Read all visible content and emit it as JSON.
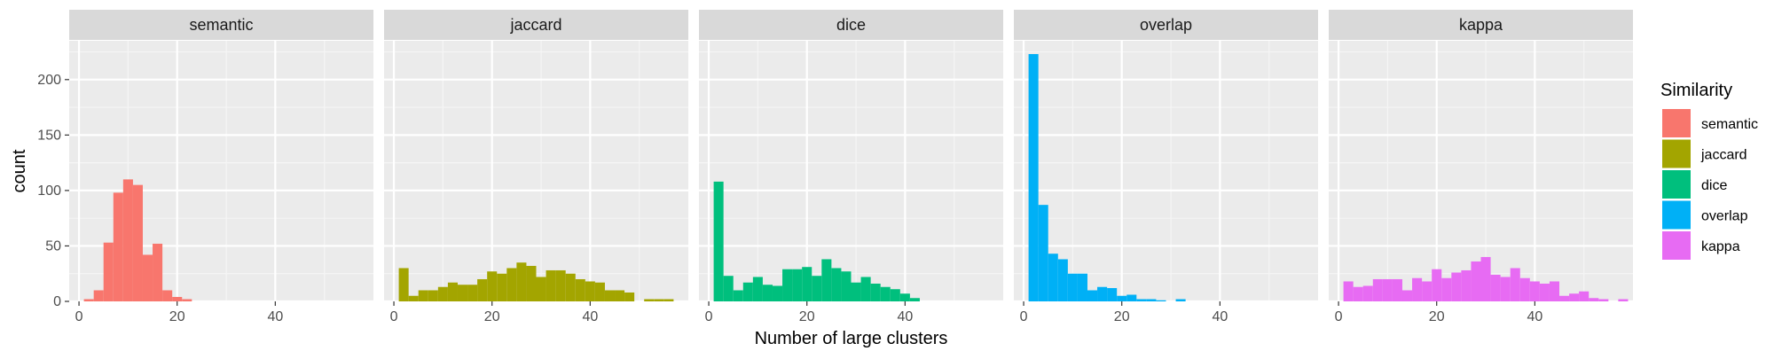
{
  "chart_data": {
    "type": "bar",
    "subtype": "faceted-histogram",
    "xlabel": "Number of large clusters",
    "ylabel": "count",
    "xlim": [
      -2,
      60
    ],
    "ylim": [
      0,
      235
    ],
    "x_ticks": [
      0,
      20,
      40
    ],
    "y_ticks": [
      0,
      50,
      100,
      150,
      200
    ],
    "bin_width": 2,
    "grid": true,
    "legend": {
      "title": "Similarity",
      "position": "right",
      "items": [
        {
          "label": "semantic",
          "color": "#F8766D"
        },
        {
          "label": "jaccard",
          "color": "#A3A500"
        },
        {
          "label": "dice",
          "color": "#00BF7D"
        },
        {
          "label": "overlap",
          "color": "#00B0F6"
        },
        {
          "label": "kappa",
          "color": "#E76BF3"
        }
      ]
    },
    "facets": [
      {
        "name": "semantic",
        "color": "#F8766D",
        "bins": [
          {
            "x": 2,
            "count": 2
          },
          {
            "x": 4,
            "count": 10
          },
          {
            "x": 6,
            "count": 53
          },
          {
            "x": 8,
            "count": 98
          },
          {
            "x": 10,
            "count": 110
          },
          {
            "x": 12,
            "count": 105
          },
          {
            "x": 14,
            "count": 42
          },
          {
            "x": 16,
            "count": 52
          },
          {
            "x": 18,
            "count": 10
          },
          {
            "x": 20,
            "count": 4
          },
          {
            "x": 22,
            "count": 2
          }
        ]
      },
      {
        "name": "jaccard",
        "color": "#A3A500",
        "bins": [
          {
            "x": 2,
            "count": 30
          },
          {
            "x": 4,
            "count": 5
          },
          {
            "x": 6,
            "count": 10
          },
          {
            "x": 8,
            "count": 10
          },
          {
            "x": 10,
            "count": 13
          },
          {
            "x": 12,
            "count": 17
          },
          {
            "x": 14,
            "count": 15
          },
          {
            "x": 16,
            "count": 15
          },
          {
            "x": 18,
            "count": 20
          },
          {
            "x": 20,
            "count": 27
          },
          {
            "x": 22,
            "count": 25
          },
          {
            "x": 24,
            "count": 30
          },
          {
            "x": 26,
            "count": 35
          },
          {
            "x": 28,
            "count": 32
          },
          {
            "x": 30,
            "count": 22
          },
          {
            "x": 32,
            "count": 28
          },
          {
            "x": 34,
            "count": 28
          },
          {
            "x": 36,
            "count": 25
          },
          {
            "x": 38,
            "count": 20
          },
          {
            "x": 40,
            "count": 18
          },
          {
            "x": 42,
            "count": 17
          },
          {
            "x": 44,
            "count": 10
          },
          {
            "x": 46,
            "count": 10
          },
          {
            "x": 48,
            "count": 8
          },
          {
            "x": 50,
            "count": 0
          },
          {
            "x": 52,
            "count": 2
          },
          {
            "x": 54,
            "count": 2
          },
          {
            "x": 56,
            "count": 2
          }
        ]
      },
      {
        "name": "dice",
        "color": "#00BF7D",
        "bins": [
          {
            "x": 2,
            "count": 108
          },
          {
            "x": 4,
            "count": 23
          },
          {
            "x": 6,
            "count": 10
          },
          {
            "x": 8,
            "count": 17
          },
          {
            "x": 10,
            "count": 22
          },
          {
            "x": 12,
            "count": 15
          },
          {
            "x": 14,
            "count": 14
          },
          {
            "x": 16,
            "count": 29
          },
          {
            "x": 18,
            "count": 29
          },
          {
            "x": 20,
            "count": 31
          },
          {
            "x": 22,
            "count": 23
          },
          {
            "x": 24,
            "count": 38
          },
          {
            "x": 26,
            "count": 30
          },
          {
            "x": 28,
            "count": 27
          },
          {
            "x": 30,
            "count": 17
          },
          {
            "x": 32,
            "count": 22
          },
          {
            "x": 34,
            "count": 16
          },
          {
            "x": 36,
            "count": 13
          },
          {
            "x": 38,
            "count": 11
          },
          {
            "x": 40,
            "count": 7
          },
          {
            "x": 42,
            "count": 3
          }
        ]
      },
      {
        "name": "overlap",
        "color": "#00B0F6",
        "bins": [
          {
            "x": 2,
            "count": 223
          },
          {
            "x": 4,
            "count": 87
          },
          {
            "x": 6,
            "count": 43
          },
          {
            "x": 8,
            "count": 38
          },
          {
            "x": 10,
            "count": 25
          },
          {
            "x": 12,
            "count": 25
          },
          {
            "x": 14,
            "count": 10
          },
          {
            "x": 16,
            "count": 13
          },
          {
            "x": 18,
            "count": 12
          },
          {
            "x": 20,
            "count": 5
          },
          {
            "x": 22,
            "count": 6
          },
          {
            "x": 24,
            "count": 2
          },
          {
            "x": 26,
            "count": 2
          },
          {
            "x": 28,
            "count": 1
          },
          {
            "x": 30,
            "count": 0
          },
          {
            "x": 32,
            "count": 2
          }
        ]
      },
      {
        "name": "kappa",
        "color": "#E76BF3",
        "bins": [
          {
            "x": 2,
            "count": 18
          },
          {
            "x": 4,
            "count": 13
          },
          {
            "x": 6,
            "count": 14
          },
          {
            "x": 8,
            "count": 20
          },
          {
            "x": 10,
            "count": 20
          },
          {
            "x": 12,
            "count": 20
          },
          {
            "x": 14,
            "count": 10
          },
          {
            "x": 16,
            "count": 21
          },
          {
            "x": 18,
            "count": 18
          },
          {
            "x": 20,
            "count": 29
          },
          {
            "x": 22,
            "count": 21
          },
          {
            "x": 24,
            "count": 26
          },
          {
            "x": 26,
            "count": 28
          },
          {
            "x": 28,
            "count": 36
          },
          {
            "x": 30,
            "count": 40
          },
          {
            "x": 32,
            "count": 24
          },
          {
            "x": 34,
            "count": 22
          },
          {
            "x": 36,
            "count": 30
          },
          {
            "x": 38,
            "count": 21
          },
          {
            "x": 40,
            "count": 18
          },
          {
            "x": 42,
            "count": 16
          },
          {
            "x": 44,
            "count": 18
          },
          {
            "x": 46,
            "count": 5
          },
          {
            "x": 48,
            "count": 7
          },
          {
            "x": 50,
            "count": 9
          },
          {
            "x": 52,
            "count": 3
          },
          {
            "x": 54,
            "count": 2
          },
          {
            "x": 56,
            "count": 0
          },
          {
            "x": 58,
            "count": 2
          }
        ]
      }
    ]
  }
}
